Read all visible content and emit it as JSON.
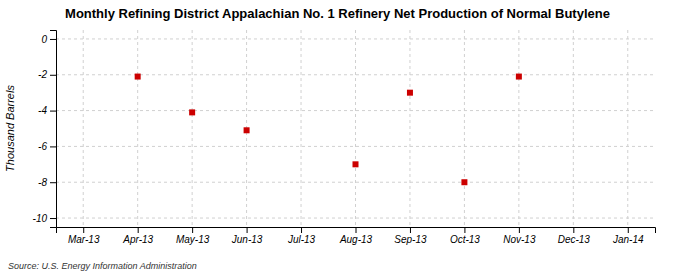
{
  "chart_data": {
    "type": "scatter",
    "title": "Monthly Refining District Appalachian No. 1 Refinery Net Production of Normal Butylene",
    "y_label": "Thousand Barrels",
    "source": "Source: U.S. Energy Information Administration",
    "categories": [
      "Mar-13",
      "Apr-13",
      "May-13",
      "Jun-13",
      "Jul-13",
      "Aug-13",
      "Sep-13",
      "Oct-13",
      "Nov-13",
      "Dec-13",
      "Jan-14"
    ],
    "values": [
      null,
      -2.1,
      -4.1,
      -5.1,
      null,
      -7.0,
      -3.0,
      -8.0,
      -2.1,
      null,
      null
    ],
    "color": "#cc0000",
    "marker": "square",
    "ylim": [
      -10.5,
      0.5
    ],
    "yticks": [
      0,
      -2,
      -4,
      -6,
      -8,
      -10
    ],
    "grid": true
  }
}
